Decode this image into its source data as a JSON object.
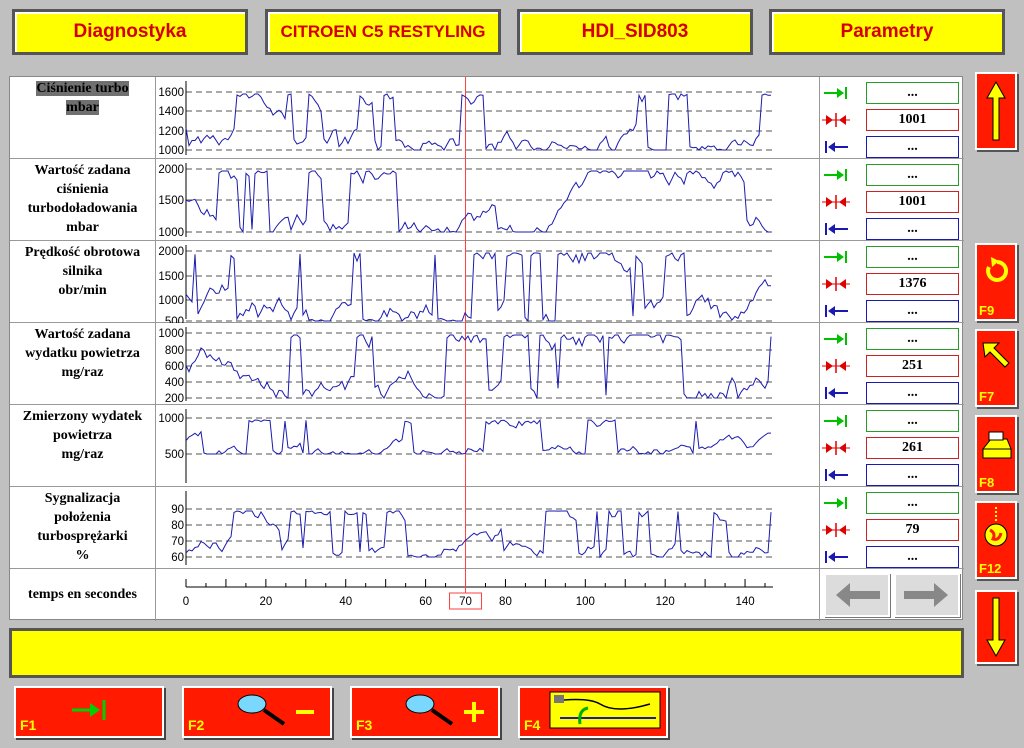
{
  "header": {
    "diagnostics": "Diagnostyka",
    "vehicle": "CITROEN C5 RESTYLING",
    "ecu": "HDI_SID803",
    "section": "Parametry"
  },
  "rows": [
    {
      "label": [
        "Ciśnienie turbo",
        "mbar"
      ],
      "ticks": [
        {
          "v": "1600",
          "y": 15
        },
        {
          "v": "1400",
          "y": 34
        },
        {
          "v": "1200",
          "y": 54
        },
        {
          "v": "1000",
          "y": 73
        }
      ],
      "max_value": "...",
      "cursor_value": "1001",
      "min_value": "..."
    },
    {
      "label": [
        "Wartość zadana",
        "ciśnienia",
        "turbodoładowania",
        "mbar"
      ],
      "ticks": [
        {
          "v": "2000",
          "y": 10
        },
        {
          "v": "1500",
          "y": 41
        },
        {
          "v": "1000",
          "y": 73
        }
      ],
      "max_value": "...",
      "cursor_value": "1001",
      "min_value": "..."
    },
    {
      "label": [
        "Prędkość obrotowa",
        "silnika",
        "obr/min"
      ],
      "ticks": [
        {
          "v": "2000",
          "y": 10
        },
        {
          "v": "1500",
          "y": 35
        },
        {
          "v": "1000",
          "y": 59
        },
        {
          "v": "500",
          "y": 80
        }
      ],
      "max_value": "...",
      "cursor_value": "1376",
      "min_value": "..."
    },
    {
      "label": [
        "Wartość zadana",
        "wydatku powietrza",
        "mg/raz"
      ],
      "ticks": [
        {
          "v": "1000",
          "y": 10
        },
        {
          "v": "800",
          "y": 27
        },
        {
          "v": "600",
          "y": 43
        },
        {
          "v": "400",
          "y": 59
        },
        {
          "v": "200",
          "y": 75
        }
      ],
      "max_value": "...",
      "cursor_value": "251",
      "min_value": "..."
    },
    {
      "label": [
        "Zmierzony wydatek",
        "powietrza",
        "mg/raz"
      ],
      "ticks": [
        {
          "v": "1000",
          "y": 13
        },
        {
          "v": "500",
          "y": 49
        }
      ],
      "max_value": "...",
      "cursor_value": "261",
      "min_value": "..."
    },
    {
      "label": [
        "Sygnalizacja",
        "położenia",
        "turbosprężarki",
        "%"
      ],
      "ticks": [
        {
          "v": "90",
          "y": 22
        },
        {
          "v": "80",
          "y": 38
        },
        {
          "v": "70",
          "y": 54
        },
        {
          "v": "60",
          "y": 70
        }
      ],
      "max_value": "...",
      "cursor_value": "79",
      "min_value": "..."
    }
  ],
  "time_axis": {
    "label": "temps en secondes",
    "ticks": [
      "0",
      "20",
      "40",
      "60",
      "80",
      "100",
      "120",
      "140"
    ],
    "cursor": "70"
  },
  "side_buttons": {
    "f9": "F9",
    "f7": "F7",
    "f8": "F8",
    "f12": "F12"
  },
  "function_keys": {
    "f1": "F1",
    "f2": "F2",
    "f3": "F3",
    "f4": "F4"
  },
  "status": "",
  "colors": {
    "accent_yellow": "#ffff00",
    "header_text": "#d40000",
    "button_red": "#ff1a00",
    "trace": "#1a1ab0",
    "cursor": "#ff4040"
  }
}
